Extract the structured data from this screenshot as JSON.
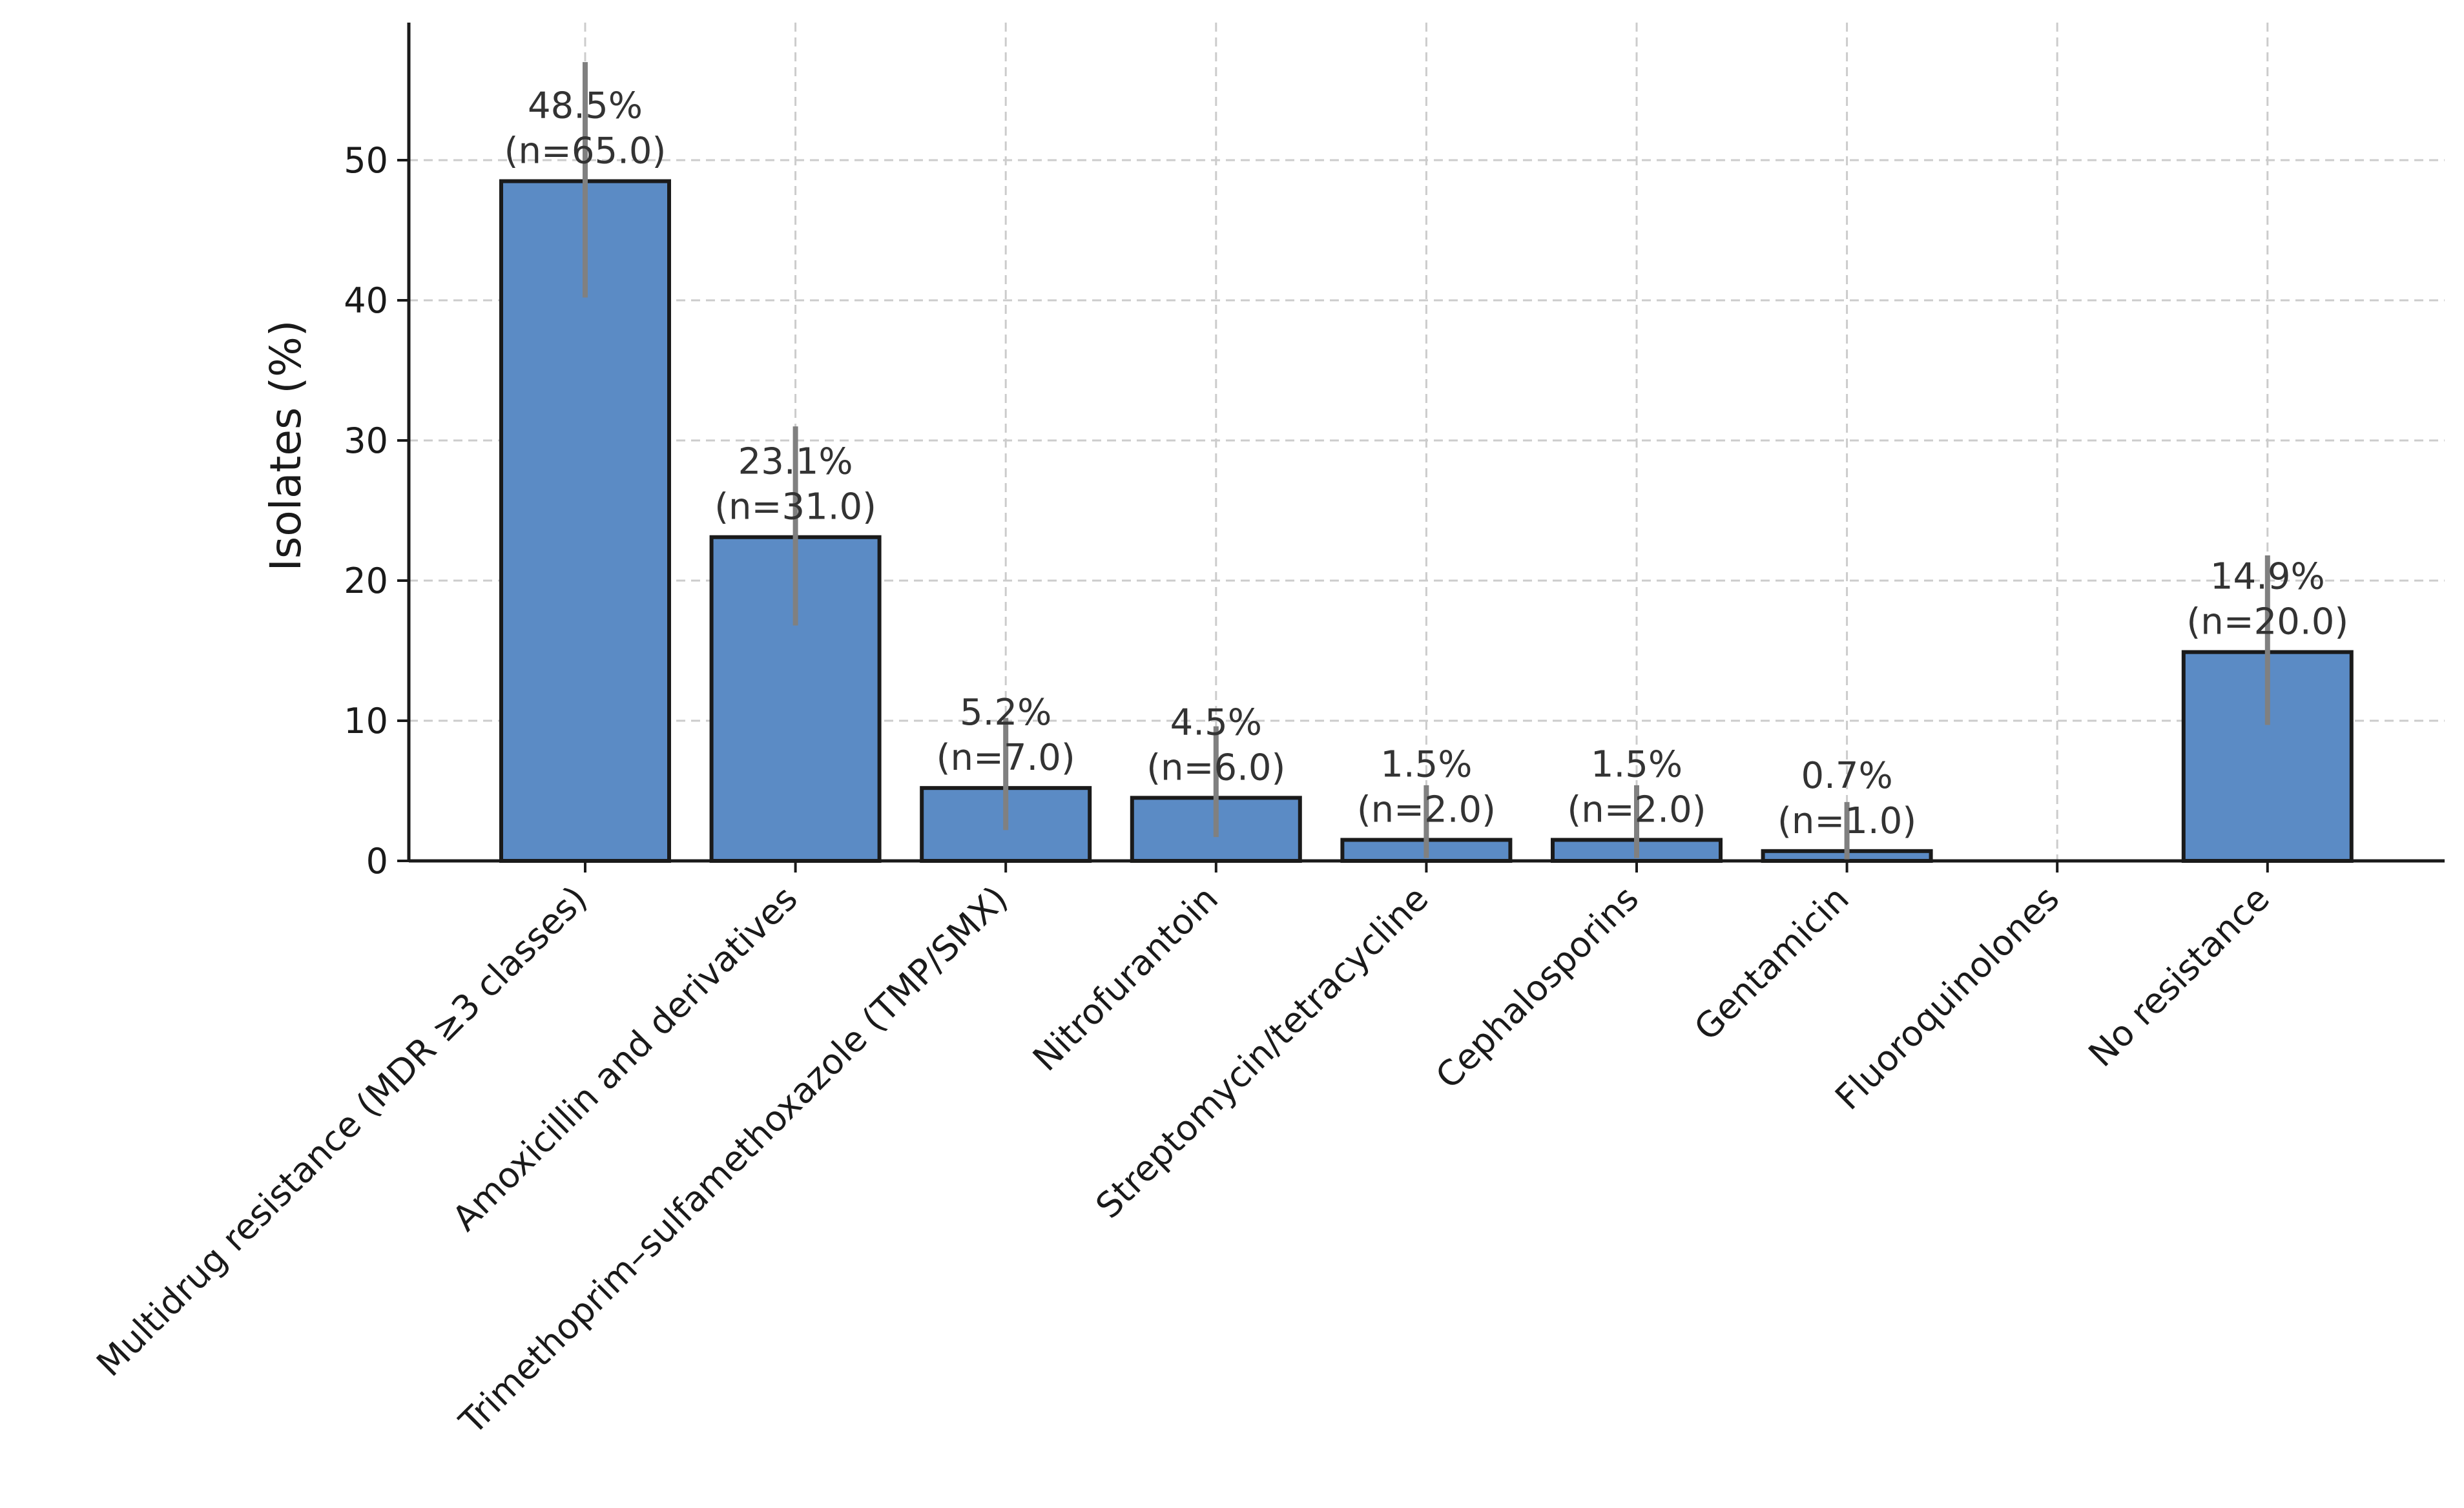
{
  "chart_data": {
    "type": "bar",
    "title": "",
    "xlabel": "",
    "ylabel": "Isolates (%)",
    "ylim": [
      0,
      60
    ],
    "yticks": [
      0,
      10,
      20,
      30,
      40,
      50
    ],
    "grid": true,
    "categories": [
      "Multidrug resistance (MDR ≥3 classes)",
      "Amoxicillin and derivatives",
      "Trimethoprim–sulfamethoxazole (TMP/SMX)",
      "Nitrofurantoin",
      "Streptomycin/tetracycline",
      "Cephalosporins",
      "Gentamicin",
      "Fluoroquinolones",
      "No resistance"
    ],
    "values": [
      48.5,
      23.1,
      5.2,
      4.5,
      1.5,
      1.5,
      0.7,
      0,
      14.9
    ],
    "error_low": [
      40.2,
      16.8,
      2.2,
      1.7,
      0.2,
      0.2,
      0.0,
      null,
      9.7
    ],
    "error_high": [
      57.0,
      31.0,
      10.2,
      9.6,
      5.4,
      5.4,
      4.2,
      null,
      21.8
    ],
    "data_labels": [
      "48.5%\n(n=65.0)",
      "23.1%\n(n=31.0)",
      "5.2%\n(n=7.0)",
      "4.5%\n(n=6.0)",
      "1.5%\n(n=2.0)",
      "1.5%\n(n=2.0)",
      "0.7%\n(n=1.0)",
      "",
      "14.9%\n(n=20.0)"
    ],
    "colors": {
      "bar": "#5b8bc5",
      "bar_edge": "#1a1a1a",
      "error": "#808080",
      "grid": "#cccccc",
      "axis": "#1a1a1a"
    }
  }
}
